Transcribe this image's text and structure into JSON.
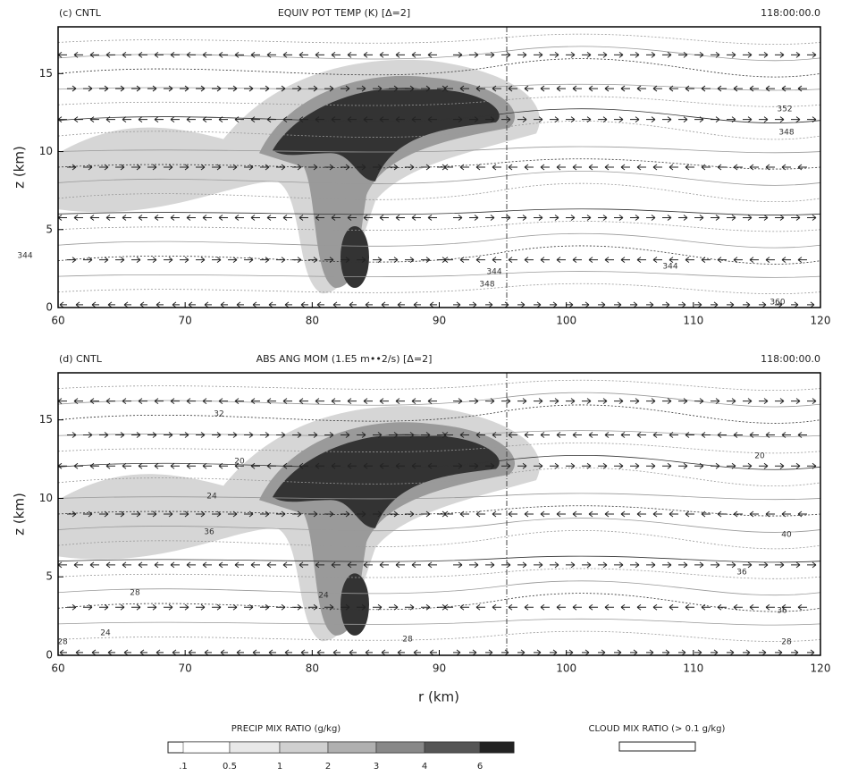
{
  "chart_data": [
    {
      "type": "contour",
      "panel": "(c) CNTL",
      "title": "EQUIV POT TEMP (K)   [Δ=2]",
      "time": "118:00:00.0",
      "xlim": [
        60,
        120
      ],
      "xticks": [
        60,
        70,
        80,
        90,
        100,
        110,
        120
      ],
      "ylim": [
        0,
        18
      ],
      "yticks": [
        0,
        5,
        10,
        15
      ],
      "ylabel": "z (km)",
      "contour_labels": [
        344,
        348,
        344,
        344,
        360,
        352,
        348
      ]
    },
    {
      "type": "contour",
      "panel": "(d) CNTL",
      "title": "ABS ANG MOM (1.E5 m••2/s)   [Δ=2]",
      "time": "118:00:00.0",
      "xlim": [
        60,
        120
      ],
      "xticks": [
        60,
        70,
        80,
        90,
        100,
        110,
        120
      ],
      "ylim": [
        0,
        18
      ],
      "yticks": [
        0,
        5,
        10,
        15
      ],
      "ylabel": "z (km)",
      "xlabel": "r (km)",
      "contour_labels": [
        32,
        20,
        24,
        36,
        28,
        24,
        28,
        24,
        28,
        40,
        36,
        36,
        28,
        20
      ]
    }
  ],
  "colorbar": {
    "title": "PRECIP MIX RATIO (g/kg)",
    "levels": [
      {
        "value": 0.1,
        "label": ".1"
      },
      0.5,
      1,
      2,
      3,
      4,
      6
    ],
    "colors": [
      "#ffffff",
      "#e8e8e8",
      "#d0d0d0",
      "#b0b0b0",
      "#888888",
      "#555555",
      "#222222"
    ],
    "cloud_title": "CLOUD MIX RATIO (> 0.1 g/kg)"
  }
}
